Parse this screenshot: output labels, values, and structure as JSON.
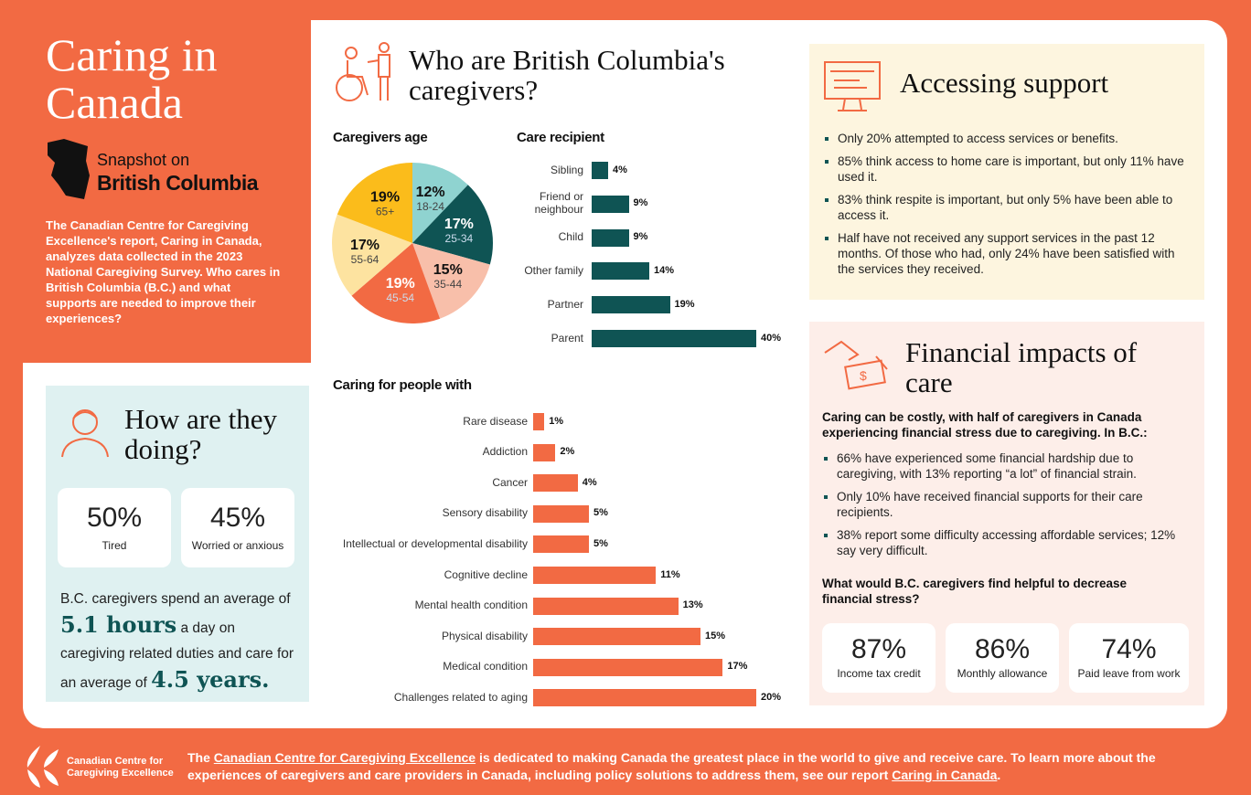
{
  "title": "Caring in Canada",
  "snapshot": {
    "line1": "Snapshot on",
    "line2": "British Columbia"
  },
  "intro": "The Canadian Centre for Caregiving Excellence's report, Caring in Canada, analyzes data collected in the 2023 National Caregiving Survey. Who cares in British Columbia (B.C.) and what supports are needed to improve their experiences?",
  "how": {
    "heading": "How are they doing?",
    "stats": [
      {
        "value": "50%",
        "label": "Tired"
      },
      {
        "value": "45%",
        "label": "Worried or anxious"
      }
    ],
    "text1": "B.C. caregivers spend an average of",
    "hours": "5.1 hours",
    "text2": "a day on caregiving related duties and care for an average of",
    "years": "4.5 years."
  },
  "who": {
    "heading": "Who are British Columbia's caregivers?"
  },
  "chart_data": [
    {
      "type": "pie",
      "title": "Caregivers age",
      "categories": [
        "18-24",
        "25-34",
        "35-44",
        "45-54",
        "55-64",
        "65+"
      ],
      "values": [
        12,
        17,
        15,
        19,
        17,
        19
      ],
      "labels": [
        "12%",
        "17%",
        "15%",
        "19%",
        "17%",
        "19%"
      ],
      "colors": [
        "#8fd3d0",
        "#0f5454",
        "#f8bfaa",
        "#f26a43",
        "#fde3a0",
        "#fbbc1b"
      ]
    },
    {
      "type": "bar",
      "orientation": "horizontal",
      "title": "Care recipient",
      "categories": [
        "Sibling",
        "Friend or neighbour",
        "Child",
        "Other family",
        "Partner",
        "Parent"
      ],
      "values": [
        4,
        9,
        9,
        14,
        19,
        40
      ],
      "labels": [
        "4%",
        "9%",
        "9%",
        "14%",
        "19%",
        "40%"
      ],
      "color": "#0f5454"
    },
    {
      "type": "bar",
      "orientation": "horizontal",
      "title": "Caring for people with",
      "categories": [
        "Rare disease",
        "Addiction",
        "Cancer",
        "Sensory disability",
        "Intellectual or developmental disability",
        "Cognitive decline",
        "Mental health condition",
        "Physical disability",
        "Medical condition",
        "Challenges related to aging"
      ],
      "values": [
        1,
        2,
        4,
        5,
        5,
        11,
        13,
        15,
        17,
        20
      ],
      "labels": [
        "1%",
        "2%",
        "4%",
        "5%",
        "5%",
        "11%",
        "13%",
        "15%",
        "17%",
        "20%"
      ],
      "color": "#f26a43"
    }
  ],
  "access": {
    "heading": "Accessing support",
    "items": [
      "Only 20% attempted to access services or benefits.",
      "85% think access to home care is important, but only 11% have used it.",
      "83% think respite is important, but only 5% have been able to access it.",
      "Half have not received any support services in the past 12 months. Of those who had, only 24% have been satisfied with the services they received."
    ]
  },
  "financial": {
    "heading": "Financial impacts of care",
    "lead": "Caring can be costly, with half of caregivers in Canada experiencing financial stress due to caregiving. In B.C.:",
    "items": [
      "66% have experienced some financial hardship due to caregiving, with 13% reporting “a lot” of financial strain.",
      "Only 10% have received financial supports for their care recipients.",
      "38% report some difficulty accessing affordable services; 12% say very difficult."
    ],
    "question": "What would B.C. caregivers find helpful to decrease financial stress?",
    "stats": [
      {
        "value": "87%",
        "label": "Income tax credit"
      },
      {
        "value": "86%",
        "label": "Monthly allowance"
      },
      {
        "value": "74%",
        "label": "Paid leave from work"
      }
    ]
  },
  "footer": {
    "logo": "Canadian Centre for Caregiving Excellence",
    "t1": "The",
    "link1": "Canadian Centre for Caregiving Excellence",
    "t2": "is dedicated to making Canada the greatest place in the world to give and receive care. To learn more about the experiences of caregivers and care providers in Canada, including policy solutions to address them, see our report",
    "link2": "Caring in Canada",
    "t3": "."
  }
}
